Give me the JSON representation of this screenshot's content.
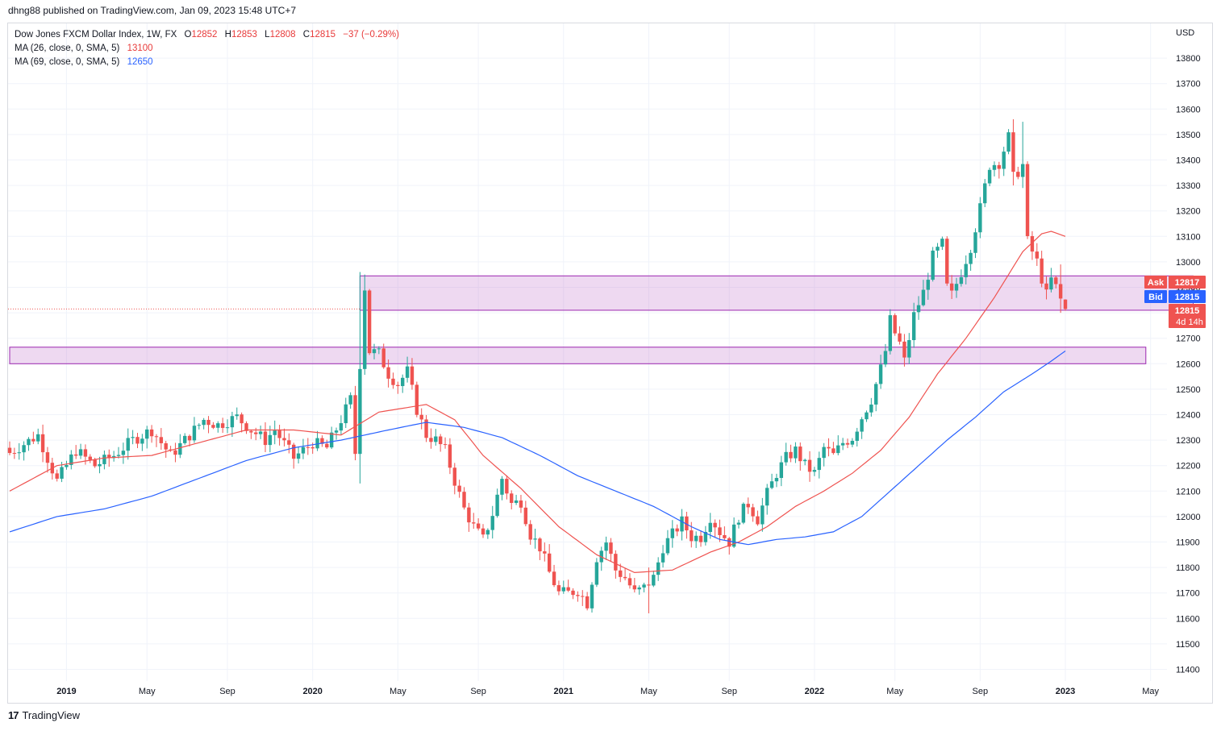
{
  "header": {
    "publish_line": "dhng88 published on TradingView.com, Jan 09, 2023 15:48 UTC+7"
  },
  "legend": {
    "symbol": "Dow Jones FXCM Dollar Index, 1W, FX",
    "open_label": "O",
    "open": "12852",
    "high_label": "H",
    "high": "12853",
    "low_label": "L",
    "low": "12808",
    "close_label": "C",
    "close": "12815",
    "change": "−37 (−0.29%)",
    "ma1_label": "MA (26, close, 0, SMA, 5)",
    "ma1_value": "13100",
    "ma2_label": "MA (69, close, 0, SMA, 5)",
    "ma2_value": "12650"
  },
  "price_axis": {
    "currency": "USD",
    "ask_label": "Ask",
    "ask_value": "12817",
    "bid_label": "Bid",
    "bid_value": "12815",
    "last_value": "12815",
    "countdown": "4d 14h"
  },
  "footer": {
    "brand": "TradingView"
  },
  "colors": {
    "up": "#26a69a",
    "down": "#ef5350",
    "ma1": "#ef5350",
    "ma2": "#2962ff",
    "zone_fill": "rgba(186,104,200,0.25)",
    "zone_border": "#9c27b0",
    "ask": "#ef5350",
    "bid": "#2962ff"
  },
  "chart_data": {
    "type": "candlestick",
    "title": "Dow Jones FXCM Dollar Index, 1W, FX",
    "ylim": [
      11340,
      13980
    ],
    "y_ticks": [
      11400,
      11500,
      11600,
      11700,
      11800,
      11900,
      12000,
      12100,
      12200,
      12300,
      12400,
      12500,
      12600,
      12700,
      12800,
      12900,
      13000,
      13100,
      13200,
      13300,
      13400,
      13500,
      13600,
      13700,
      13800
    ],
    "x_ticks": [
      {
        "label": "2019",
        "week": 12,
        "bold": true
      },
      {
        "label": "May",
        "week": 29
      },
      {
        "label": "Sep",
        "week": 46
      },
      {
        "label": "2020",
        "week": 64,
        "bold": true
      },
      {
        "label": "May",
        "week": 82
      },
      {
        "label": "Sep",
        "week": 99
      },
      {
        "label": "2021",
        "week": 117,
        "bold": true
      },
      {
        "label": "May",
        "week": 135
      },
      {
        "label": "Sep",
        "week": 152
      },
      {
        "label": "2022",
        "week": 170,
        "bold": true
      },
      {
        "label": "May",
        "week": 187
      },
      {
        "label": "Sep",
        "week": 205
      },
      {
        "label": "2023",
        "week": 223,
        "bold": true
      },
      {
        "label": "May",
        "week": 241
      }
    ],
    "zones": [
      {
        "name": "upper-resistance-zone",
        "from": 12810,
        "to": 12945,
        "start_week": 74,
        "end_week": 250
      },
      {
        "name": "lower-support-zone",
        "from": 12600,
        "to": 12665,
        "start_week": 0,
        "end_week": 240
      }
    ],
    "close_anchors": [
      [
        0,
        12250
      ],
      [
        6,
        12320
      ],
      [
        10,
        12140
      ],
      [
        14,
        12260
      ],
      [
        18,
        12200
      ],
      [
        22,
        12240
      ],
      [
        26,
        12300
      ],
      [
        30,
        12340
      ],
      [
        34,
        12240
      ],
      [
        38,
        12320
      ],
      [
        41,
        12380
      ],
      [
        44,
        12360
      ],
      [
        48,
        12390
      ],
      [
        51,
        12340
      ],
      [
        54,
        12300
      ],
      [
        56,
        12340
      ],
      [
        60,
        12230
      ],
      [
        64,
        12290
      ],
      [
        67,
        12270
      ],
      [
        70,
        12380
      ],
      [
        72,
        12460
      ],
      [
        73,
        12250
      ],
      [
        74,
        12600
      ],
      [
        75,
        12900
      ],
      [
        76,
        12650
      ],
      [
        78,
        12640
      ],
      [
        80,
        12560
      ],
      [
        82,
        12520
      ],
      [
        84,
        12570
      ],
      [
        86,
        12420
      ],
      [
        88,
        12320
      ],
      [
        90,
        12300
      ],
      [
        92,
        12260
      ],
      [
        94,
        12140
      ],
      [
        96,
        12030
      ],
      [
        98,
        11960
      ],
      [
        100,
        11910
      ],
      [
        102,
        12010
      ],
      [
        104,
        12150
      ],
      [
        106,
        12050
      ],
      [
        108,
        12060
      ],
      [
        110,
        11930
      ],
      [
        112,
        11880
      ],
      [
        114,
        11780
      ],
      [
        116,
        11700
      ],
      [
        118,
        11700
      ],
      [
        120,
        11710
      ],
      [
        122,
        11660
      ],
      [
        124,
        11840
      ],
      [
        126,
        11900
      ],
      [
        128,
        11790
      ],
      [
        130,
        11760
      ],
      [
        132,
        11700
      ],
      [
        134,
        11720
      ],
      [
        136,
        11760
      ],
      [
        138,
        11880
      ],
      [
        140,
        11930
      ],
      [
        142,
        11980
      ],
      [
        144,
        11920
      ],
      [
        146,
        11920
      ],
      [
        148,
        12000
      ],
      [
        150,
        11940
      ],
      [
        152,
        11900
      ],
      [
        154,
        12000
      ],
      [
        156,
        12050
      ],
      [
        158,
        11990
      ],
      [
        160,
        12090
      ],
      [
        162,
        12170
      ],
      [
        164,
        12230
      ],
      [
        166,
        12260
      ],
      [
        168,
        12200
      ],
      [
        170,
        12170
      ],
      [
        172,
        12270
      ],
      [
        174,
        12240
      ],
      [
        176,
        12290
      ],
      [
        178,
        12310
      ],
      [
        180,
        12390
      ],
      [
        182,
        12460
      ],
      [
        184,
        12580
      ],
      [
        185,
        12650
      ],
      [
        186,
        12770
      ],
      [
        187,
        12720
      ],
      [
        188,
        12680
      ],
      [
        189,
        12610
      ],
      [
        191,
        12790
      ],
      [
        193,
        12880
      ],
      [
        195,
        13020
      ],
      [
        197,
        13070
      ],
      [
        198,
        12900
      ],
      [
        199,
        12870
      ],
      [
        201,
        12960
      ],
      [
        203,
        13060
      ],
      [
        205,
        13210
      ],
      [
        207,
        13380
      ],
      [
        209,
        13390
      ],
      [
        211,
        13490
      ],
      [
        212,
        13330
      ],
      [
        214,
        13380
      ],
      [
        215,
        13080
      ],
      [
        217,
        13000
      ],
      [
        219,
        12870
      ],
      [
        220,
        12930
      ],
      [
        221,
        12900
      ],
      [
        222,
        12852
      ],
      [
        223,
        12815
      ]
    ],
    "ma26_anchors": [
      [
        0,
        12100
      ],
      [
        10,
        12200
      ],
      [
        20,
        12230
      ],
      [
        30,
        12240
      ],
      [
        40,
        12290
      ],
      [
        50,
        12340
      ],
      [
        60,
        12340
      ],
      [
        70,
        12320
      ],
      [
        78,
        12410
      ],
      [
        88,
        12440
      ],
      [
        94,
        12380
      ],
      [
        100,
        12240
      ],
      [
        108,
        12110
      ],
      [
        116,
        11960
      ],
      [
        124,
        11850
      ],
      [
        132,
        11780
      ],
      [
        140,
        11790
      ],
      [
        148,
        11860
      ],
      [
        154,
        11900
      ],
      [
        160,
        11960
      ],
      [
        166,
        12040
      ],
      [
        172,
        12100
      ],
      [
        178,
        12170
      ],
      [
        184,
        12260
      ],
      [
        190,
        12390
      ],
      [
        196,
        12560
      ],
      [
        202,
        12700
      ],
      [
        208,
        12860
      ],
      [
        214,
        13040
      ],
      [
        218,
        13110
      ],
      [
        220,
        13120
      ],
      [
        223,
        13100
      ]
    ],
    "ma69_anchors": [
      [
        0,
        11940
      ],
      [
        10,
        12000
      ],
      [
        20,
        12030
      ],
      [
        30,
        12080
      ],
      [
        40,
        12150
      ],
      [
        50,
        12220
      ],
      [
        60,
        12270
      ],
      [
        70,
        12300
      ],
      [
        80,
        12340
      ],
      [
        88,
        12370
      ],
      [
        96,
        12350
      ],
      [
        104,
        12310
      ],
      [
        112,
        12240
      ],
      [
        120,
        12160
      ],
      [
        128,
        12100
      ],
      [
        136,
        12040
      ],
      [
        144,
        11960
      ],
      [
        150,
        11910
      ],
      [
        156,
        11890
      ],
      [
        162,
        11910
      ],
      [
        168,
        11920
      ],
      [
        174,
        11940
      ],
      [
        180,
        12000
      ],
      [
        186,
        12100
      ],
      [
        192,
        12200
      ],
      [
        198,
        12300
      ],
      [
        204,
        12390
      ],
      [
        210,
        12490
      ],
      [
        216,
        12560
      ],
      [
        220,
        12610
      ],
      [
        223,
        12650
      ]
    ]
  }
}
